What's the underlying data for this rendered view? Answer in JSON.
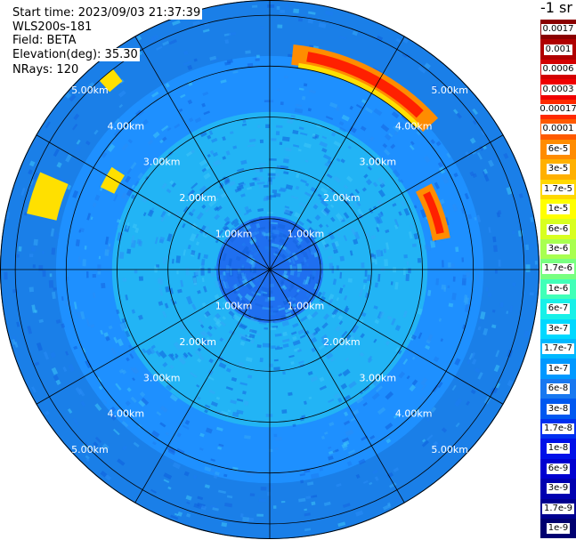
{
  "header": {
    "start_time": "Start time: 2023/09/03 21:37:39",
    "instrument": "WLS200s-181",
    "field": "Field: BETA",
    "elevation": "Elevation(deg): 35.30",
    "nrays": "NRays: 120"
  },
  "colorbar": {
    "unit_label": "-1 sr",
    "entries": [
      {
        "label": "0.0017",
        "color": "#8b0000"
      },
      {
        "label": "0.001",
        "color": "#b00000"
      },
      {
        "label": "0.0006",
        "color": "#d40000"
      },
      {
        "label": "0.0003",
        "color": "#f00000"
      },
      {
        "label": "0.00017",
        "color": "#ff2a00"
      },
      {
        "label": "0.0001",
        "color": "#ff5a00"
      },
      {
        "label": "6e-5",
        "color": "#ff8c00"
      },
      {
        "label": "3e-5",
        "color": "#ffb000"
      },
      {
        "label": "1.7e-5",
        "color": "#ffd800"
      },
      {
        "label": "1e-5",
        "color": "#ffff00"
      },
      {
        "label": "6e-6",
        "color": "#d8ff20"
      },
      {
        "label": "3e-6",
        "color": "#a8ff50"
      },
      {
        "label": "1.7e-6",
        "color": "#78ff80"
      },
      {
        "label": "1e-6",
        "color": "#40ffb8"
      },
      {
        "label": "6e-7",
        "color": "#18f0e8"
      },
      {
        "label": "3e-7",
        "color": "#00d8ff"
      },
      {
        "label": "1.7e-7",
        "color": "#00b8ff"
      },
      {
        "label": "1e-7",
        "color": "#0098ff"
      },
      {
        "label": "6e-8",
        "color": "#1878f0"
      },
      {
        "label": "3e-8",
        "color": "#0058f0"
      },
      {
        "label": "1.7e-8",
        "color": "#0030f0"
      },
      {
        "label": "1e-8",
        "color": "#0010e8"
      },
      {
        "label": "6e-9",
        "color": "#0000d0"
      },
      {
        "label": "3e-9",
        "color": "#0000b0"
      },
      {
        "label": "1.7e-9",
        "color": "#000090"
      },
      {
        "label": "1e-9",
        "color": "#000070"
      }
    ]
  },
  "ppi": {
    "max_range_km": 5.3,
    "ring_ranges_km": [
      1,
      2,
      3,
      4,
      5
    ],
    "ring_labels": [
      "1.00km",
      "2.00km",
      "3.00km",
      "4.00km",
      "5.00km"
    ],
    "azimuth_lines_deg": [
      0,
      30,
      60,
      90,
      120,
      150
    ],
    "colors": {
      "near": "#1f6ff0",
      "mid": "#22b4f5",
      "far": "#1e90ff",
      "edge": "#1a7fe8",
      "plume_yellow": "#ffe000",
      "plume_orange": "#ff8c00",
      "plume_red": "#ff2000"
    }
  }
}
